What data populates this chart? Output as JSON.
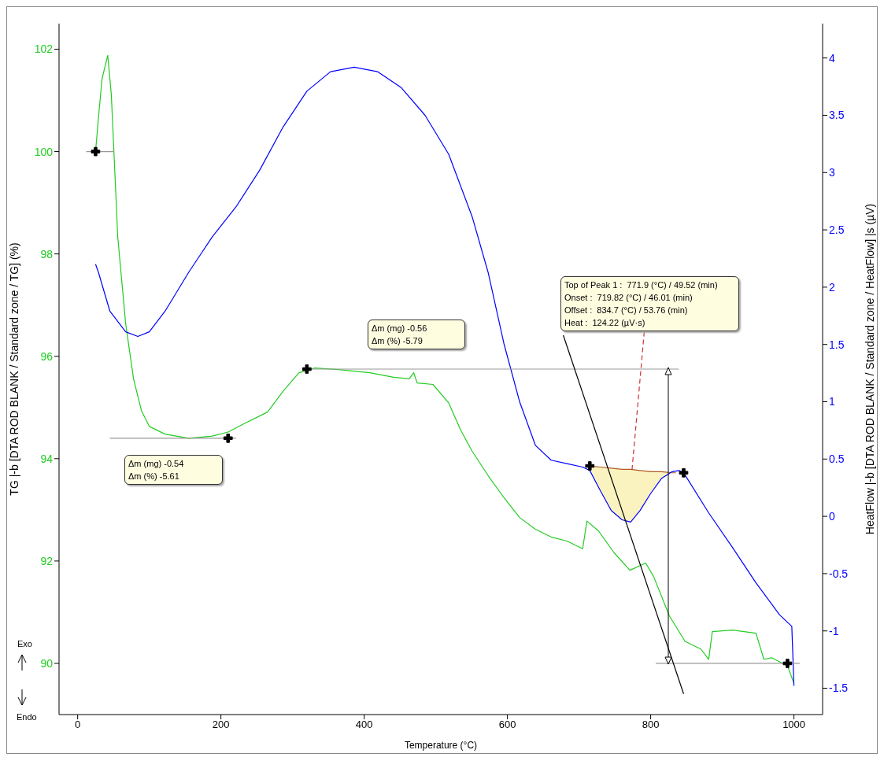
{
  "chart_data": {
    "type": "line",
    "xlabel": "Temperature (°C)",
    "ylabel": "TG |-b [DTA ROD BLANK / Standard zone / TG] (%)",
    "y2label": "HeatFlow |-b [DTA ROD BLANK / Standard zone / HeatFlow] |s (µV)",
    "xlim": [
      -26,
      1040
    ],
    "xticks": [
      0,
      200,
      400,
      600,
      800,
      1000
    ],
    "ylim": [
      89,
      102.5
    ],
    "yticks": [
      90,
      92,
      94,
      96,
      98,
      100,
      102
    ],
    "y2lim": [
      -1.73,
      4.3
    ],
    "y2ticks": [
      -1.5,
      -1,
      -0.5,
      0,
      0.5,
      1,
      1.5,
      2,
      2.5,
      3,
      3.5,
      4
    ],
    "grid": false,
    "marker": "none",
    "line_style": "solid",
    "series": [
      {
        "axis": "y2",
        "color": "#b05a20",
        "x": [
          715,
          730,
          745,
          760,
          772,
          785,
          800,
          815,
          830,
          835
        ],
        "values": [
          0.44,
          0.43,
          0.42,
          0.41,
          0.41,
          0.4,
          0.39,
          0.39,
          0.38,
          0.38
        ],
        "lower": [
          0.42,
          0.22,
          0.05,
          -0.03,
          -0.05,
          0.05,
          0.2,
          0.33,
          0.38,
          0.38
        ],
        "upper": [
          0.44,
          0.43,
          0.42,
          0.41,
          0.41,
          0.4,
          0.39,
          0.39,
          0.38,
          0.38
        ]
      },
      {
        "color": "#22cc22",
        "x": [
          25,
          29,
          34,
          42,
          47,
          56,
          67,
          78,
          89,
          100,
          122,
          155,
          188,
          210,
          232,
          265,
          287,
          309,
          331,
          364,
          408,
          441,
          463,
          469,
          474,
          496,
          518,
          535,
          551,
          573,
          595,
          617,
          639,
          661,
          683,
          705,
          711,
          727,
          749,
          771,
          793,
          804,
          826,
          848,
          870,
          881,
          886,
          914,
          947,
          958,
          969,
          991,
          1000
        ],
        "values": [
          100.0,
          100.65,
          101.42,
          101.88,
          101.11,
          98.33,
          96.64,
          95.56,
          94.94,
          94.63,
          94.48,
          94.4,
          94.44,
          94.52,
          94.68,
          94.91,
          95.32,
          95.68,
          95.77,
          95.74,
          95.68,
          95.59,
          95.56,
          95.68,
          95.48,
          95.45,
          95.09,
          94.55,
          94.14,
          93.67,
          93.24,
          92.85,
          92.62,
          92.47,
          92.39,
          92.24,
          92.78,
          92.59,
          92.16,
          91.82,
          91.96,
          91.7,
          90.93,
          90.43,
          90.28,
          90.08,
          90.62,
          90.65,
          90.59,
          90.08,
          90.11,
          89.95,
          89.61
        ]
      },
      {
        "axis": "y2",
        "color": "#0000ff",
        "x": [
          25,
          29,
          45,
          67,
          84,
          100,
          122,
          155,
          188,
          221,
          254,
          287,
          320,
          353,
          386,
          419,
          452,
          485,
          518,
          551,
          573,
          595,
          617,
          639,
          661,
          683,
          705,
          715,
          730,
          745,
          760,
          772,
          785,
          800,
          815,
          830,
          840,
          848,
          881,
          914,
          947,
          980,
          997,
          1000
        ],
        "values": [
          2.2,
          2.13,
          1.79,
          1.61,
          1.57,
          1.61,
          1.79,
          2.13,
          2.44,
          2.7,
          3.02,
          3.4,
          3.71,
          3.88,
          3.92,
          3.88,
          3.74,
          3.5,
          3.16,
          2.61,
          2.13,
          1.51,
          1.0,
          0.62,
          0.49,
          0.46,
          0.43,
          0.4,
          0.22,
          0.05,
          -0.03,
          -0.05,
          0.05,
          0.2,
          0.33,
          0.39,
          0.4,
          0.36,
          0.03,
          -0.27,
          -0.58,
          -0.86,
          -0.96,
          -1.48
        ]
      },
      {
        "color": "#999999",
        "x": [
          12,
          51
        ],
        "values": [
          100,
          100
        ]
      },
      {
        "color": "#999999",
        "x": [
          45,
          221
        ],
        "values": [
          94.4,
          94.4
        ]
      },
      {
        "color": "#999999",
        "x": [
          320,
          839
        ],
        "values": [
          95.75,
          95.75
        ]
      },
      {
        "color": "#999999",
        "x": [
          807,
          1008
        ],
        "values": [
          90.0,
          90.0
        ]
      },
      {
        "axis": "y2",
        "color": "#000000",
        "x": [
          678,
          846
        ],
        "values": [
          1.58,
          -1.55
        ]
      },
      {
        "axis": "y2",
        "color": "#cc3333",
        "line_style": "dashed",
        "x": [
          791,
          774
        ],
        "values": [
          1.61,
          0.41
        ]
      },
      {
        "type": "scatter",
        "color": "#000000",
        "marker": "cross",
        "x": [
          25,
          210,
          320,
          991
        ],
        "values": [
          100,
          94.4,
          95.75,
          90.0
        ]
      },
      {
        "type": "scatter",
        "axis": "y2",
        "color": "#000000",
        "marker": "cross",
        "x": [
          715,
          846
        ],
        "values": [
          0.44,
          0.38
        ]
      }
    ],
    "annotations": [
      "Δm (mg) -0.54\nΔm (%) -5.61",
      "Δm (mg) -0.56\nΔm (%) -5.79",
      "Top of Peak 1 :  771.9 (°C) / 49.52 (min)\nOnset :  719.82 (°C) / 46.01 (min)\nOffset :  834.7 (°C) / 53.76 (min)\nHeat :  124.22 (µV·s)",
      "Exo",
      "Endo"
    ]
  }
}
